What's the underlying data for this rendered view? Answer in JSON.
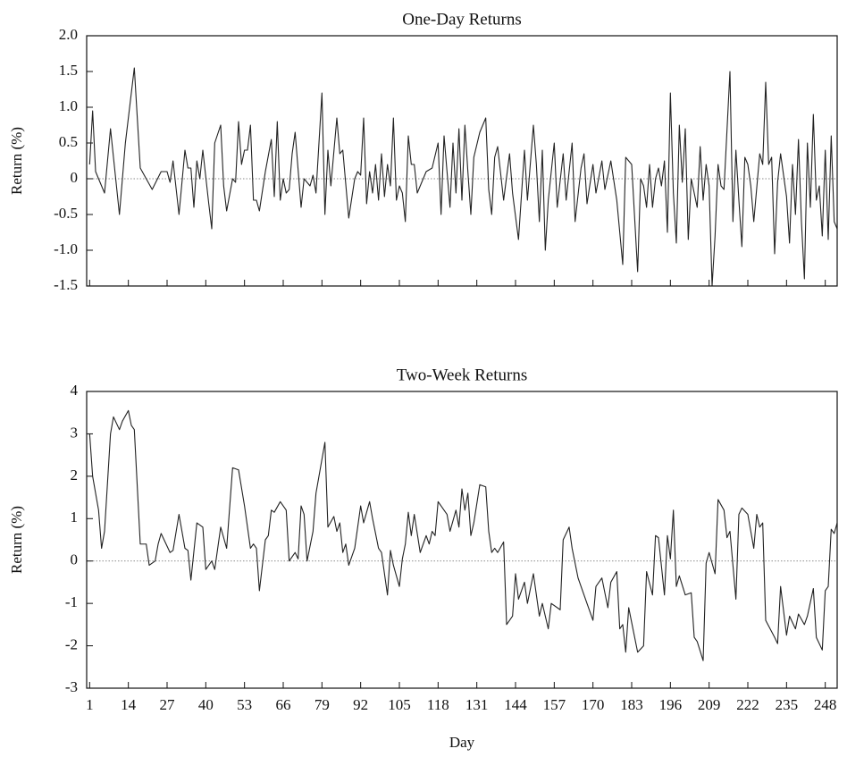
{
  "chart_data": [
    {
      "type": "line",
      "title": "One-Day Returns",
      "ylabel": "Return (%)",
      "color": "#222222",
      "zero_line": true,
      "xtick_labels": false,
      "xlim": [
        0,
        252
      ],
      "xticks": [
        1,
        14,
        27,
        40,
        53,
        66,
        79,
        92,
        105,
        118,
        131,
        144,
        157,
        170,
        183,
        196,
        209,
        222,
        235,
        248
      ],
      "ylim": [
        -1.5,
        2
      ],
      "yticks": [
        {
          "value": 2,
          "label": "2.0"
        },
        1.5,
        {
          "value": 1,
          "label": "1.0"
        },
        0.5,
        0,
        -0.5,
        {
          "value": -1,
          "label": "-1.0"
        },
        -1.5
      ],
      "x": [
        1,
        2,
        3,
        5,
        6,
        8,
        9,
        11,
        13,
        16,
        18,
        22,
        25,
        27,
        28,
        29,
        31,
        33,
        34,
        35,
        36,
        37,
        38,
        39,
        41,
        42,
        43,
        45,
        46,
        47,
        49,
        50,
        51,
        52,
        53,
        54,
        55,
        56,
        57,
        58,
        60,
        62,
        63,
        64,
        65,
        66,
        67,
        68,
        69,
        70,
        72,
        73,
        75,
        76,
        77,
        79,
        80,
        81,
        82,
        84,
        85,
        86,
        88,
        90,
        91,
        92,
        93,
        94,
        95,
        96,
        97,
        98,
        99,
        100,
        101,
        102,
        103,
        104,
        105,
        106,
        107,
        108,
        109,
        110,
        111,
        113,
        114,
        116,
        118,
        119,
        120,
        121,
        122,
        123,
        124,
        125,
        126,
        127,
        128,
        129,
        130,
        132,
        134,
        135,
        136,
        137,
        138,
        140,
        142,
        143,
        145,
        147,
        148,
        150,
        151,
        152,
        153,
        154,
        155,
        157,
        158,
        160,
        161,
        163,
        164,
        166,
        167,
        168,
        170,
        171,
        173,
        174,
        176,
        178,
        180,
        181,
        183,
        185,
        186,
        187,
        188,
        189,
        190,
        191,
        192,
        193,
        194,
        195,
        196,
        197,
        198,
        199,
        200,
        201,
        202,
        203,
        204,
        205,
        206,
        207,
        208,
        209,
        210,
        211,
        212,
        213,
        214,
        216,
        217,
        218,
        219,
        220,
        221,
        222,
        223,
        224,
        226,
        227,
        228,
        229,
        230,
        231,
        232,
        233,
        235,
        236,
        237,
        238,
        239,
        240,
        241,
        242,
        243,
        244,
        245,
        246,
        247,
        248,
        249,
        250,
        251,
        252
      ],
      "values": [
        0.2,
        0.95,
        0.1,
        -0.1,
        -0.2,
        0.7,
        0.3,
        -0.5,
        0.5,
        1.55,
        0.15,
        -0.15,
        0.1,
        0.1,
        -0.05,
        0.25,
        -0.5,
        0.4,
        0.15,
        0.15,
        -0.4,
        0.25,
        0,
        0.4,
        -0.35,
        -0.7,
        0.5,
        0.75,
        -0.1,
        -0.45,
        0,
        -0.05,
        0.8,
        0.2,
        0.4,
        0.4,
        0.75,
        -0.3,
        -0.3,
        -0.45,
        0.1,
        0.55,
        -0.25,
        0.8,
        -0.3,
        0,
        -0.2,
        -0.15,
        0.35,
        0.65,
        -0.4,
        0,
        -0.1,
        0.05,
        -0.2,
        1.2,
        -0.5,
        0.4,
        -0.1,
        0.85,
        0.35,
        0.4,
        -0.55,
        0,
        0.1,
        0.05,
        0.85,
        -0.35,
        0.1,
        -0.2,
        0.2,
        -0.3,
        0.35,
        -0.25,
        0.2,
        -0.1,
        0.85,
        -0.3,
        -0.1,
        -0.2,
        -0.6,
        0.6,
        0.2,
        0.2,
        -0.2,
        0,
        0.1,
        0.15,
        0.5,
        -0.5,
        0.6,
        0.1,
        -0.4,
        0.5,
        -0.2,
        0.7,
        -0.3,
        0.75,
        0.1,
        -0.5,
        0.3,
        0.65,
        0.85,
        -0.15,
        -0.5,
        0.3,
        0.45,
        -0.3,
        0.35,
        -0.2,
        -0.85,
        0.4,
        -0.3,
        0.75,
        0.2,
        -0.6,
        0.4,
        -1.0,
        -0.3,
        0.5,
        -0.4,
        0.35,
        -0.3,
        0.5,
        -0.6,
        0.15,
        0.35,
        -0.35,
        0.2,
        -0.2,
        0.25,
        -0.15,
        0.25,
        -0.3,
        -1.2,
        0.3,
        0.2,
        -1.3,
        0,
        -0.1,
        -0.4,
        0.2,
        -0.4,
        0,
        0.15,
        -0.1,
        0.25,
        -0.75,
        1.2,
        -0.2,
        -0.9,
        0.75,
        -0.05,
        0.7,
        -0.85,
        0,
        -0.2,
        -0.4,
        0.45,
        -0.3,
        0.2,
        -0.1,
        -1.5,
        -0.8,
        0.2,
        -0.1,
        -0.15,
        1.5,
        -0.6,
        0.4,
        -0.3,
        -0.95,
        0.3,
        0.2,
        -0.1,
        -0.6,
        0.35,
        0.2,
        1.35,
        0.2,
        0.3,
        -1.05,
        -0.05,
        0.35,
        -0.25,
        -0.9,
        0.2,
        -0.5,
        0.55,
        -0.6,
        -1.4,
        0.5,
        -0.4,
        0.9,
        -0.3,
        -0.1,
        -0.8,
        0.4,
        -0.85,
        0.6,
        -0.6,
        -0.7
      ]
    },
    {
      "type": "line",
      "title": "Two-Week Returns",
      "ylabel": "Return (%)",
      "xlabel": "Day",
      "color": "#222222",
      "zero_line": true,
      "xtick_labels": true,
      "xlim": [
        0,
        252
      ],
      "xticks": [
        1,
        14,
        27,
        40,
        53,
        66,
        79,
        92,
        105,
        118,
        131,
        144,
        157,
        170,
        183,
        196,
        209,
        222,
        235,
        248
      ],
      "ylim": [
        -3,
        4
      ],
      "yticks": [
        4,
        3,
        2,
        1,
        0,
        -1,
        -2,
        -3
      ],
      "x": [
        1,
        2,
        4,
        5,
        6,
        8,
        9,
        11,
        12,
        14,
        15,
        16,
        18,
        20,
        21,
        23,
        24,
        25,
        27,
        28,
        29,
        31,
        33,
        34,
        35,
        37,
        39,
        40,
        42,
        43,
        45,
        47,
        49,
        51,
        53,
        55,
        56,
        57,
        58,
        60,
        61,
        62,
        63,
        65,
        67,
        68,
        70,
        71,
        72,
        73,
        74,
        76,
        77,
        80,
        81,
        83,
        84,
        85,
        86,
        87,
        88,
        90,
        92,
        93,
        95,
        96,
        98,
        99,
        101,
        102,
        103,
        105,
        106,
        107,
        108,
        109,
        110,
        112,
        114,
        115,
        116,
        117,
        118,
        121,
        122,
        124,
        125,
        126,
        127,
        128,
        129,
        130,
        132,
        134,
        135,
        136,
        137,
        138,
        140,
        141,
        143,
        144,
        145,
        147,
        148,
        150,
        152,
        153,
        155,
        156,
        159,
        160,
        162,
        163,
        165,
        166,
        168,
        170,
        171,
        173,
        175,
        176,
        178,
        179,
        180,
        181,
        182,
        184,
        185,
        187,
        188,
        190,
        191,
        192,
        194,
        195,
        196,
        197,
        198,
        199,
        201,
        203,
        204,
        205,
        207,
        208,
        209,
        211,
        212,
        214,
        215,
        216,
        218,
        219,
        220,
        222,
        224,
        225,
        226,
        227,
        228,
        231,
        232,
        233,
        235,
        236,
        238,
        239,
        241,
        242,
        244,
        245,
        247,
        248,
        249,
        250,
        251,
        252
      ],
      "values": [
        3.0,
        2.0,
        1.2,
        0.3,
        0.7,
        3.0,
        3.4,
        3.1,
        3.3,
        3.55,
        3.2,
        3.1,
        0.4,
        0.4,
        -0.1,
        0,
        0.4,
        0.65,
        0.35,
        0.2,
        0.25,
        1.1,
        0.3,
        0.25,
        -0.45,
        0.9,
        0.8,
        -0.2,
        0,
        -0.2,
        0.8,
        0.3,
        2.2,
        2.15,
        1.3,
        0.3,
        0.4,
        0.3,
        -0.7,
        0.5,
        0.6,
        1.2,
        1.15,
        1.4,
        1.2,
        0,
        0.2,
        0.05,
        1.3,
        1.1,
        0,
        0.7,
        1.6,
        2.8,
        0.8,
        1.05,
        0.7,
        0.9,
        0.2,
        0.4,
        -0.1,
        0.3,
        1.3,
        0.9,
        1.4,
        1.0,
        0.3,
        0.2,
        -0.8,
        0.25,
        -0.1,
        -0.6,
        0.05,
        0.4,
        1.15,
        0.6,
        1.1,
        0.2,
        0.6,
        0.4,
        0.7,
        0.6,
        1.4,
        1.1,
        0.7,
        1.2,
        0.8,
        1.7,
        1.2,
        1.6,
        0.6,
        0.9,
        1.8,
        1.75,
        0.7,
        0.2,
        0.3,
        0.2,
        0.45,
        -1.5,
        -1.3,
        -0.3,
        -0.9,
        -0.5,
        -1.0,
        -0.3,
        -1.3,
        -1.0,
        -1.6,
        -1.0,
        -1.15,
        0.5,
        0.8,
        0.3,
        -0.4,
        -0.6,
        -1.0,
        -1.4,
        -0.6,
        -0.4,
        -1.1,
        -0.5,
        -0.25,
        -1.6,
        -1.5,
        -2.15,
        -1.1,
        -1.8,
        -2.15,
        -2.0,
        -0.25,
        -0.8,
        0.6,
        0.55,
        -0.8,
        0.6,
        0.05,
        1.2,
        -0.6,
        -0.35,
        -0.8,
        -0.75,
        -1.8,
        -1.9,
        -2.35,
        -0.05,
        0.2,
        -0.3,
        1.45,
        1.2,
        0.55,
        0.7,
        -0.9,
        1.1,
        1.25,
        1.1,
        0.3,
        1.1,
        0.8,
        0.9,
        -1.4,
        -1.8,
        -1.95,
        -0.6,
        -1.75,
        -1.3,
        -1.6,
        -1.25,
        -1.5,
        -1.3,
        -0.65,
        -1.8,
        -2.1,
        -0.7,
        -0.6,
        0.75,
        0.65,
        0.9
      ]
    }
  ]
}
